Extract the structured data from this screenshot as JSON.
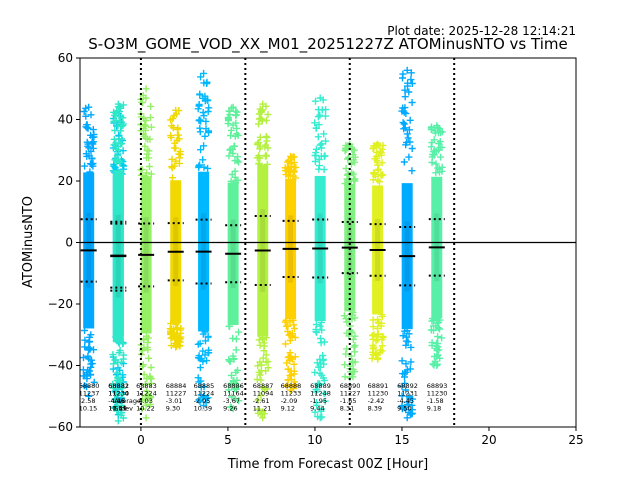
{
  "plot_date": "Plot date: 2025-12-28 12:14:21",
  "chart_data": {
    "type": "scatter",
    "title": "S-O3M_GOME_VOD_XX_M01_20251227Z ATOMinusNTO vs Time",
    "xlabel": "Time from Forecast 00Z [Hour]",
    "ylabel": "ATOMinusNTO",
    "xlim": [
      -3.5,
      25
    ],
    "ylim": [
      -60,
      60
    ],
    "xticks": [
      0,
      5,
      10,
      15,
      20,
      25
    ],
    "yticks": [
      -60,
      -40,
      -20,
      0,
      20,
      40,
      60
    ],
    "marker": "+",
    "grid": false,
    "reference_line_y": 0,
    "vertical_dotted_lines_x": [
      0,
      6,
      12,
      18
    ],
    "stats_row_labels": [
      "",
      "",
      "Average",
      "Stdev"
    ],
    "orbits": [
      {
        "x": -3.0,
        "orbit": "68880",
        "n": "11237",
        "mean": -2.58,
        "stdev": 10.15,
        "color": "#00a8ff",
        "top": 44,
        "bottom": -50
      },
      {
        "x": -1.3,
        "orbit": "68881",
        "n": "11230",
        "mean": -4.26,
        "stdev": 10.41,
        "color": "#00ccee",
        "top": 42,
        "bottom": -56
      },
      {
        "x": -1.3,
        "orbit": "68882",
        "n": "11234",
        "mean": -4.45,
        "stdev": 11.19,
        "color": "#2ee6c8",
        "top": 45,
        "bottom": -58
      },
      {
        "x": 0.3,
        "orbit": "68883",
        "n": "11224",
        "mean": -4.03,
        "stdev": 10.22,
        "color": "#96f064",
        "top": 50,
        "bottom": -57
      },
      {
        "x": 2.0,
        "orbit": "68884",
        "n": "11227",
        "mean": -3.01,
        "stdev": 9.3,
        "color": "#f0d800",
        "top": 43,
        "bottom": -34
      },
      {
        "x": 3.6,
        "orbit": "68885",
        "n": "11224",
        "mean": -2.95,
        "stdev": 10.39,
        "color": "#00b8ff",
        "top": 55,
        "bottom": -53
      },
      {
        "x": 5.3,
        "orbit": "68886",
        "n": "11164",
        "mean": -3.67,
        "stdev": 9.26,
        "color": "#5ef09a",
        "top": 44,
        "bottom": -54
      },
      {
        "x": 7.0,
        "orbit": "68887",
        "n": "11094",
        "mean": -2.61,
        "stdev": 11.21,
        "color": "#b4f040",
        "top": 45,
        "bottom": -57
      },
      {
        "x": 8.6,
        "orbit": "68888",
        "n": "11233",
        "mean": -2.09,
        "stdev": 9.12,
        "color": "#ffd000",
        "top": 28,
        "bottom": -48
      },
      {
        "x": 10.3,
        "orbit": "68889",
        "n": "11248",
        "mean": -1.95,
        "stdev": 9.44,
        "color": "#34ecd0",
        "top": 47,
        "bottom": -57
      },
      {
        "x": 12.0,
        "orbit": "68890",
        "n": "11227",
        "mean": -1.65,
        "stdev": 8.31,
        "color": "#80f080",
        "top": 32,
        "bottom": -44
      },
      {
        "x": 13.6,
        "orbit": "68891",
        "n": "11230",
        "mean": -2.42,
        "stdev": 8.39,
        "color": "#e0f020",
        "top": 32,
        "bottom": -38
      },
      {
        "x": 15.3,
        "orbit": "68892",
        "n": "11231",
        "mean": -4.45,
        "stdev": 9.5,
        "color": "#00aaff",
        "top": 56,
        "bottom": -57
      },
      {
        "x": 17.0,
        "orbit": "68893",
        "n": "11230",
        "mean": -1.58,
        "stdev": 9.18,
        "color": "#58f0a8",
        "top": 38,
        "bottom": -40
      }
    ]
  }
}
